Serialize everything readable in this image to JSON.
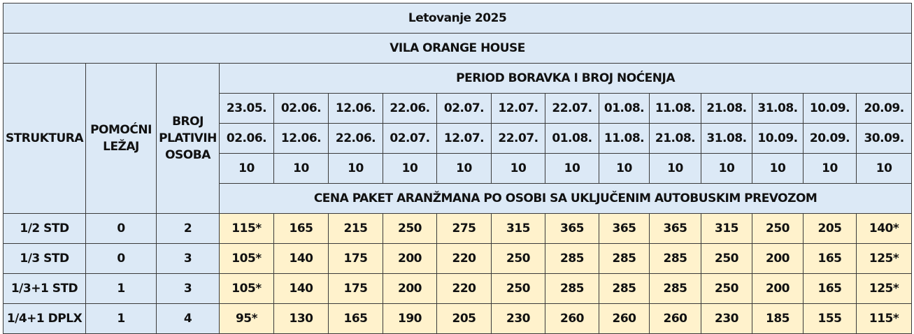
{
  "title": "Letovanje 2025",
  "subtitle": "VILA ORANGE HOUSE",
  "headers": {
    "struktura": "STRUKTURA",
    "pomocni_lezaj": "POMOĆNI LEŽAJ",
    "broj_plativih_osoba": "BROJ PLATIVIH OSOBA",
    "period": "PERIOD BORAVKA I BROJ NOĆENJA",
    "cena": "CENA PAKET ARANŽMANA PO OSOBI SA UKLJUČENIM AUTOBUSKIM PREVOZOM"
  },
  "periods": [
    {
      "from": "23.05.",
      "to": "02.06.",
      "nights": "10"
    },
    {
      "from": "02.06.",
      "to": "12.06.",
      "nights": "10"
    },
    {
      "from": "12.06.",
      "to": "22.06.",
      "nights": "10"
    },
    {
      "from": "22.06.",
      "to": "02.07.",
      "nights": "10"
    },
    {
      "from": "02.07.",
      "to": "12.07.",
      "nights": "10"
    },
    {
      "from": "12.07.",
      "to": "22.07.",
      "nights": "10"
    },
    {
      "from": "22.07.",
      "to": "01.08.",
      "nights": "10"
    },
    {
      "from": "01.08.",
      "to": "11.08.",
      "nights": "10"
    },
    {
      "from": "11.08.",
      "to": "21.08.",
      "nights": "10"
    },
    {
      "from": "21.08.",
      "to": "31.08.",
      "nights": "10"
    },
    {
      "from": "31.08.",
      "to": "10.09.",
      "nights": "10"
    },
    {
      "from": "10.09.",
      "to": "20.09.",
      "nights": "10"
    },
    {
      "from": "20.09.",
      "to": "30.09.",
      "nights": "10"
    }
  ],
  "rows": [
    {
      "struktura": "1/2 STD",
      "pomocni": "0",
      "plativih": "2",
      "prices": [
        "115*",
        "165",
        "215",
        "250",
        "275",
        "315",
        "365",
        "365",
        "365",
        "315",
        "250",
        "205",
        "140*"
      ]
    },
    {
      "struktura": "1/3 STD",
      "pomocni": "0",
      "plativih": "3",
      "prices": [
        "105*",
        "140",
        "175",
        "200",
        "220",
        "250",
        "285",
        "285",
        "285",
        "250",
        "200",
        "165",
        "125*"
      ]
    },
    {
      "struktura": "1/3+1 STD",
      "pomocni": "1",
      "plativih": "3",
      "prices": [
        "105*",
        "140",
        "175",
        "200",
        "220",
        "250",
        "285",
        "285",
        "285",
        "250",
        "200",
        "165",
        "125*"
      ]
    },
    {
      "struktura": "1/4+1 DPLX",
      "pomocni": "1",
      "plativih": "4",
      "prices": [
        "95*",
        "130",
        "165",
        "190",
        "205",
        "230",
        "260",
        "260",
        "260",
        "230",
        "185",
        "155",
        "115*"
      ]
    }
  ]
}
